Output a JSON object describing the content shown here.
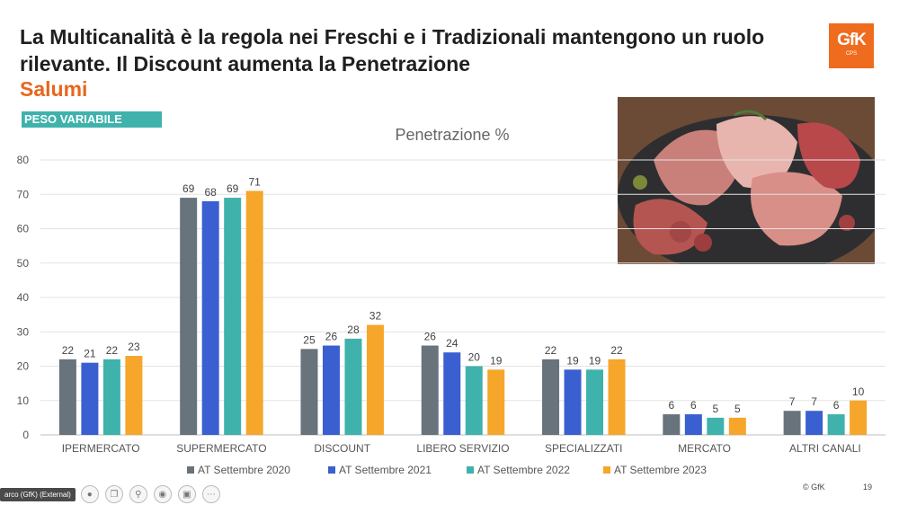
{
  "header": {
    "title": "La Multicanalità è la regola nei Freschi e i Tradizionali mantengono un ruolo rilevante. Il Discount aumenta la Penetrazione",
    "subtitle": "Salumi",
    "tag": "PESO VARIABILE"
  },
  "logo": {
    "text": "GfK",
    "sub": "CPS",
    "color": "#ef6b1e"
  },
  "footer": {
    "copyright": "© GfK",
    "page": "19"
  },
  "taskbar": {
    "label": "arco (GfK) (External)",
    "icons": [
      "mic-icon",
      "copy-icon",
      "search-icon",
      "record-icon",
      "camera-icon",
      "more-icon"
    ]
  },
  "chart_data": {
    "type": "bar",
    "title": "Penetrazione %",
    "categories": [
      "IPERMERCATO",
      "SUPERMERCATO",
      "DISCOUNT",
      "LIBERO SERVIZIO",
      "SPECIALIZZATI",
      "MERCATO",
      "ALTRI CANALI"
    ],
    "series": [
      {
        "name": "AT Settembre 2020",
        "color": "#68737c",
        "values": [
          22,
          69,
          25,
          26,
          22,
          6,
          7
        ]
      },
      {
        "name": "AT Settembre 2021",
        "color": "#3a5fd0",
        "values": [
          21,
          68,
          26,
          24,
          19,
          6,
          7
        ]
      },
      {
        "name": "AT Settembre 2022",
        "color": "#3fb2ac",
        "values": [
          22,
          69,
          28,
          20,
          19,
          5,
          6
        ]
      },
      {
        "name": "AT Settembre 2023",
        "color": "#f6a62a",
        "values": [
          23,
          71,
          32,
          19,
          22,
          5,
          10
        ]
      }
    ],
    "ylim": [
      0,
      80
    ],
    "yticks": [
      0,
      10,
      20,
      30,
      40,
      50,
      60,
      70,
      80
    ],
    "grid": true,
    "legend": "bottom"
  }
}
